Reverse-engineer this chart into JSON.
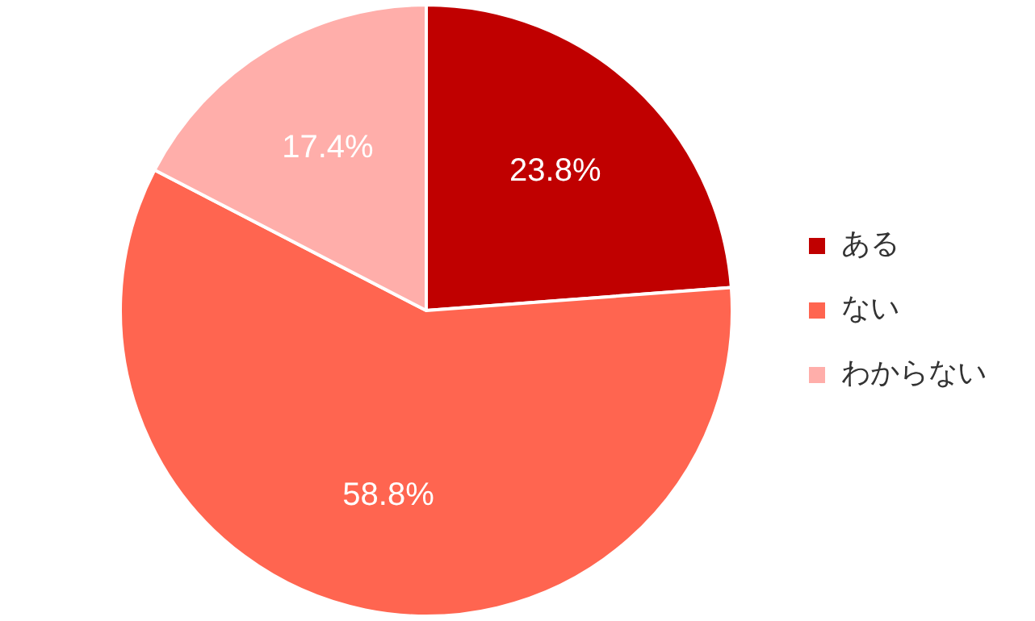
{
  "chart_data": {
    "type": "pie",
    "categories": [
      "ある",
      "ない",
      "わからない"
    ],
    "values": [
      23.8,
      58.8,
      17.4
    ],
    "colors": [
      "#c00000",
      "#ff6550",
      "#ffaeaa"
    ],
    "value_labels": [
      "23.8%",
      "58.8%",
      "17.4%"
    ],
    "legend": "right"
  }
}
